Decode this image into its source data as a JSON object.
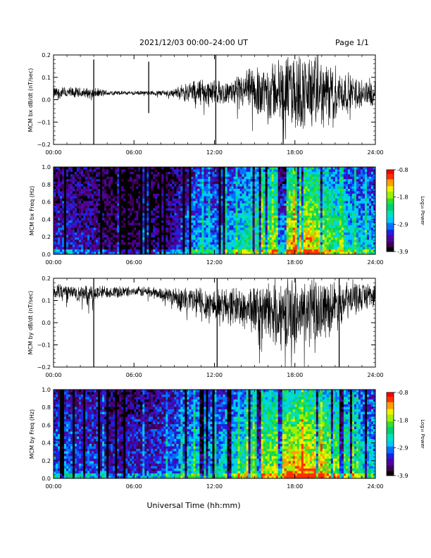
{
  "header": {
    "title": "2021/12/03  00:00–24:00 UT",
    "page": "Page 1/1"
  },
  "footer": {
    "xlabel": "Universal Time (hh:mm)"
  },
  "chart_data": [
    {
      "type": "line",
      "ylabel": "MCM bx dB/dt (nT/sec)",
      "xlim": [
        "00:00",
        "24:00"
      ],
      "xticks": [
        "00:00",
        "06:00",
        "12:00",
        "18:00",
        "24:00"
      ],
      "ylim": [
        -0.2,
        0.2
      ],
      "yticks": [
        "0.2",
        "0.1",
        "0.0",
        "−0.1",
        "−0.2"
      ],
      "series": [
        {
          "x_hours": [
            0,
            1,
            2,
            3,
            4,
            5,
            6,
            7,
            8,
            9,
            10,
            11,
            12,
            13,
            14,
            15,
            16,
            17,
            18,
            19,
            20,
            21,
            22,
            23,
            24
          ],
          "baseline": [
            0.03,
            0.03,
            0.03,
            0.03,
            0.03,
            0.03,
            0.03,
            0.03,
            0.03,
            0.03,
            0.035,
            0.035,
            0.03,
            0.035,
            0.035,
            0.04,
            0.04,
            0.04,
            0.035,
            0.035,
            0.03,
            0.03,
            0.03,
            0.03,
            0.03
          ],
          "amplitude": [
            0.03,
            0.03,
            0.025,
            0.025,
            0.015,
            0.01,
            0.01,
            0.01,
            0.015,
            0.02,
            0.05,
            0.07,
            0.06,
            0.05,
            0.08,
            0.12,
            0.14,
            0.16,
            0.19,
            0.18,
            0.16,
            0.13,
            0.09,
            0.07,
            0.06
          ],
          "spikes": [
            {
              "hour": 3.0,
              "min": -0.2,
              "max": 0.18
            },
            {
              "hour": 7.1,
              "min": -0.06,
              "max": 0.17
            },
            {
              "hour": 12.1,
              "min": -0.2,
              "max": 0.2
            }
          ]
        }
      ]
    },
    {
      "type": "heatmap",
      "ylabel": "MCM bx Freq (Hz)",
      "xlim": [
        "00:00",
        "24:00"
      ],
      "xticks": [
        "00:00",
        "06:00",
        "12:00",
        "18:00",
        "24:00"
      ],
      "ylim": [
        0.0,
        1.0
      ],
      "yticks": [
        "1.0",
        "0.8",
        "0.6",
        "0.4",
        "0.2",
        "0.0"
      ],
      "colorbar": {
        "label": "Log₁₀ Power",
        "range": [
          -3.9,
          -0.8
        ],
        "ticks": [
          "-0.8",
          "-1.8",
          "-2.9",
          "-3.9"
        ]
      },
      "activity_by_hour": [
        0.25,
        0.25,
        0.2,
        0.2,
        0.12,
        0.08,
        0.08,
        0.12,
        0.15,
        0.2,
        0.35,
        0.45,
        0.35,
        0.4,
        0.5,
        0.6,
        0.65,
        0.75,
        0.85,
        0.85,
        0.75,
        0.6,
        0.5,
        0.45,
        0.4
      ],
      "colormap": [
        "#000000",
        "#3c0050",
        "#5000a0",
        "#2020e0",
        "#0070ff",
        "#00c8ff",
        "#00e0c0",
        "#00d070",
        "#30e030",
        "#a0f000",
        "#f0f000",
        "#ffa000",
        "#ff3000",
        "#ff0000"
      ]
    },
    {
      "type": "line",
      "ylabel": "MCM by dB/dt (nT/sec)",
      "xlim": [
        "00:00",
        "24:00"
      ],
      "xticks": [
        "00:00",
        "06:00",
        "12:00",
        "18:00",
        "24:00"
      ],
      "ylim": [
        -0.2,
        0.2
      ],
      "yticks": [
        "0.2",
        "0.1",
        "0.0",
        "−0.1",
        "−0.2"
      ],
      "series": [
        {
          "x_hours": [
            0,
            1,
            2,
            3,
            4,
            5,
            6,
            7,
            8,
            9,
            10,
            11,
            12,
            13,
            14,
            15,
            16,
            17,
            18,
            19,
            20,
            21,
            22,
            23,
            24
          ],
          "baseline": [
            0.14,
            0.14,
            0.13,
            0.13,
            0.14,
            0.14,
            0.14,
            0.14,
            0.13,
            0.12,
            0.1,
            0.09,
            0.08,
            0.08,
            0.07,
            0.06,
            0.05,
            0.05,
            0.04,
            0.05,
            0.06,
            0.08,
            0.1,
            0.12,
            0.13
          ],
          "amplitude": [
            0.05,
            0.04,
            0.04,
            0.04,
            0.03,
            0.03,
            0.02,
            0.03,
            0.03,
            0.05,
            0.07,
            0.09,
            0.09,
            0.09,
            0.1,
            0.12,
            0.14,
            0.16,
            0.18,
            0.17,
            0.15,
            0.12,
            0.09,
            0.07,
            0.06
          ],
          "spikes": [
            {
              "hour": 3.0,
              "min": -0.2,
              "max": 0.2
            },
            {
              "hour": 12.2,
              "min": -0.2,
              "max": 0.2
            },
            {
              "hour": 21.3,
              "min": -0.2,
              "max": 0.2
            }
          ]
        }
      ]
    },
    {
      "type": "heatmap",
      "ylabel": "MCM by Freq (Hz)",
      "xlim": [
        "00:00",
        "24:00"
      ],
      "xticks": [
        "00:00",
        "06:00",
        "12:00",
        "18:00",
        "24:00"
      ],
      "ylim": [
        0.0,
        1.0
      ],
      "yticks": [
        "1.0",
        "0.8",
        "0.6",
        "0.4",
        "0.2",
        "0.0"
      ],
      "colorbar": {
        "label": "Log₁₀ Power",
        "range": [
          -3.9,
          -0.8
        ],
        "ticks": [
          "-0.8",
          "-1.8",
          "-2.9",
          "-3.9"
        ]
      },
      "activity_by_hour": [
        0.35,
        0.35,
        0.3,
        0.3,
        0.25,
        0.2,
        0.25,
        0.25,
        0.3,
        0.35,
        0.45,
        0.5,
        0.4,
        0.5,
        0.55,
        0.65,
        0.7,
        0.8,
        0.85,
        0.85,
        0.8,
        0.7,
        0.6,
        0.5,
        0.45
      ],
      "colormap": [
        "#000000",
        "#3c0050",
        "#5000a0",
        "#2020e0",
        "#0070ff",
        "#00c8ff",
        "#00e0c0",
        "#00d070",
        "#30e030",
        "#a0f000",
        "#f0f000",
        "#ffa000",
        "#ff3000",
        "#ff0000"
      ]
    }
  ]
}
